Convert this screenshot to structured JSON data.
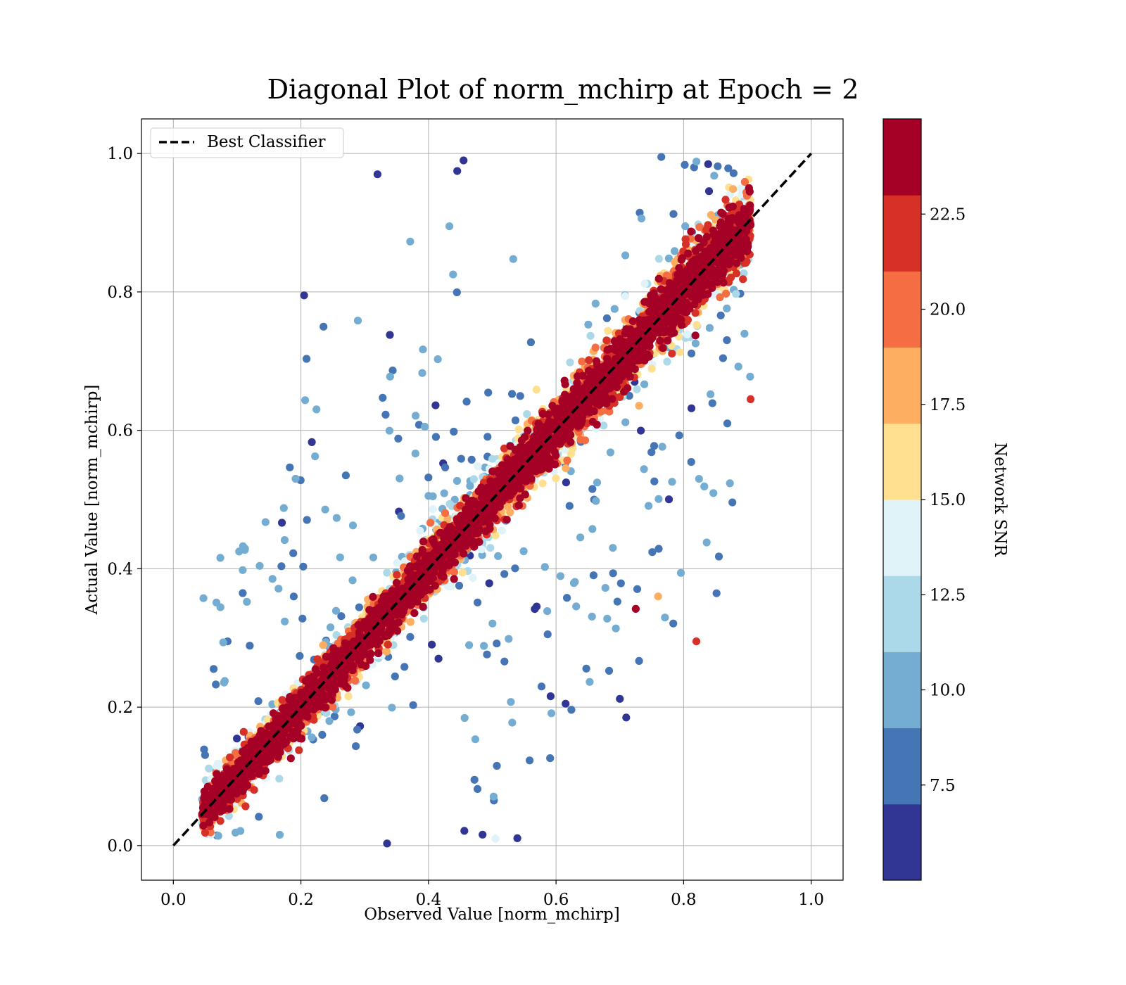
{
  "chart_data": {
    "type": "scatter",
    "title": "Diagonal Plot of norm_mchirp at Epoch = 2",
    "xlabel": "Observed Value [norm_mchirp]",
    "ylabel": "Actual Value [norm_mchirp]",
    "xlim": [
      -0.05,
      1.05
    ],
    "ylim": [
      -0.05,
      1.05
    ],
    "x_ticks": [
      "0.0",
      "0.2",
      "0.4",
      "0.6",
      "0.8",
      "1.0"
    ],
    "y_ticks": [
      "0.0",
      "0.2",
      "0.4",
      "0.6",
      "0.8",
      "1.0"
    ],
    "grid": true,
    "legend": {
      "placement": "upper-left",
      "entries": [
        "Best Classifier"
      ]
    },
    "reference_line": {
      "name": "Best Classifier",
      "style": "dashed",
      "color": "#000000",
      "x": [
        0,
        1
      ],
      "y": [
        0,
        1
      ]
    },
    "colorbar": {
      "label": "Network SNR",
      "vmin": 5.0,
      "vmax": 25.0,
      "ticks": [
        "7.5",
        "10.0",
        "12.5",
        "15.0",
        "17.5",
        "20.0",
        "22.5"
      ],
      "colors": [
        "#313695",
        "#4575b4",
        "#74add1",
        "#abd9e9",
        "#e0f3f8",
        "#fee090",
        "#fdae61",
        "#f46d43",
        "#d73027",
        "#a50026"
      ]
    },
    "distribution": {
      "x_range": [
        0.04,
        0.91
      ],
      "y_range": [
        0.0,
        1.0
      ],
      "description_points": [
        {
          "x": 0.085,
          "y": 0.295,
          "snr": 7
        },
        {
          "x": 0.205,
          "y": 0.795,
          "snr": 6
        },
        {
          "x": 0.32,
          "y": 0.97,
          "snr": 6
        },
        {
          "x": 0.455,
          "y": 0.99,
          "snr": 6
        },
        {
          "x": 0.765,
          "y": 0.995,
          "snr": 8
        },
        {
          "x": 0.905,
          "y": 0.645,
          "snr": 21
        },
        {
          "x": 0.82,
          "y": 0.295,
          "snr": 21
        },
        {
          "x": 0.71,
          "y": 0.185,
          "snr": 6
        },
        {
          "x": 0.7,
          "y": 0.212,
          "snr": 6
        },
        {
          "x": 0.615,
          "y": 0.205,
          "snr": 6
        },
        {
          "x": 0.505,
          "y": 0.01,
          "snr": 13
        },
        {
          "x": 0.335,
          "y": 0.003,
          "snr": 6
        },
        {
          "x": 0.725,
          "y": 0.342,
          "snr": 24
        },
        {
          "x": 0.76,
          "y": 0.36,
          "snr": 18
        }
      ]
    }
  }
}
